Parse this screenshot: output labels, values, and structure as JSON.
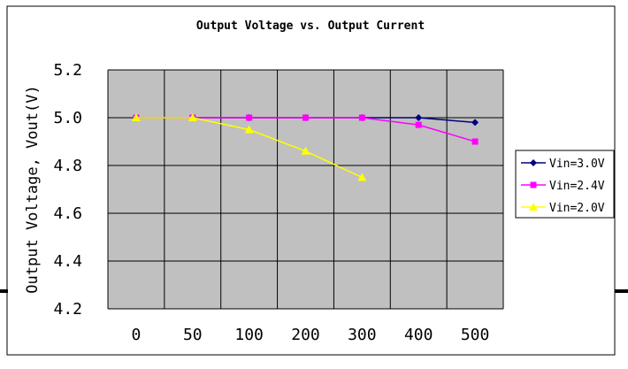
{
  "colors": {
    "plot_background": "#c0c0c0",
    "grid": "#000000",
    "series": [
      "#000080",
      "#ff00ff",
      "#ffff00"
    ]
  },
  "chart_data": {
    "type": "line",
    "title": "Output Voltage vs. Output Current",
    "ylabel": "Output Voltage, Vout(V)",
    "xlabel": "",
    "categories": [
      "0",
      "50",
      "100",
      "200",
      "300",
      "400",
      "500"
    ],
    "ylim": [
      4.2,
      5.2
    ],
    "yticks": [
      "4.2",
      "4.4",
      "4.6",
      "4.8",
      "5.0",
      "5.2"
    ],
    "grid": true,
    "legend_position": "right",
    "series": [
      {
        "name": "Vin=3.0V",
        "marker": "diamond",
        "values": [
          5.0,
          5.0,
          5.0,
          5.0,
          5.0,
          5.0,
          4.98
        ]
      },
      {
        "name": "Vin=2.4V",
        "marker": "square",
        "values": [
          5.0,
          5.0,
          5.0,
          5.0,
          5.0,
          4.97,
          4.9
        ]
      },
      {
        "name": "Vin=2.0V",
        "marker": "triangle",
        "values": [
          5.0,
          5.0,
          4.95,
          4.86,
          4.75,
          null,
          null
        ]
      }
    ]
  }
}
